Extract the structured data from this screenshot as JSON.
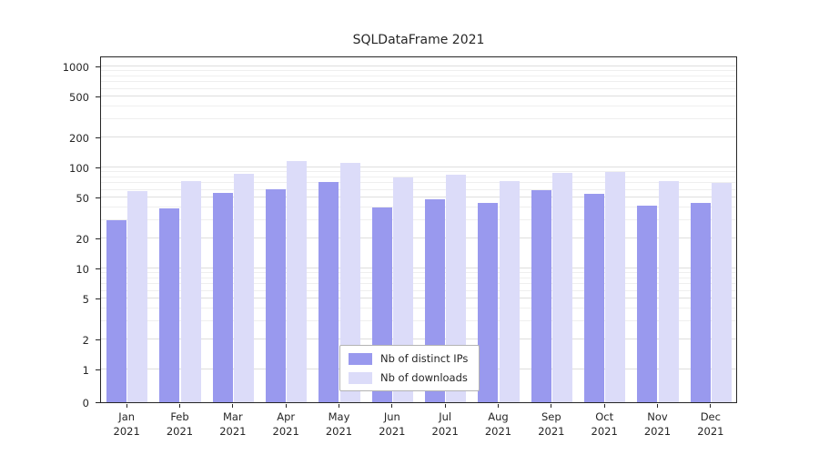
{
  "chart_data": {
    "type": "bar",
    "title": "SQLDataFrame 2021",
    "xlabel": "",
    "ylabel": "",
    "yscale": "symlog",
    "ylim": [
      0,
      1100
    ],
    "y_ticks": [
      0,
      1,
      2,
      5,
      10,
      20,
      50,
      100,
      200,
      500,
      1000
    ],
    "grid": true,
    "legend_position": "lower center",
    "categories": [
      "Jan 2021",
      "Feb 2021",
      "Mar 2021",
      "Apr 2021",
      "May 2021",
      "Jun 2021",
      "Jul 2021",
      "Aug 2021",
      "Sep 2021",
      "Oct 2021",
      "Nov 2021",
      "Dec 2021"
    ],
    "series": [
      {
        "name": "Nb of distinct IPs",
        "color": "#9999ee",
        "values": [
          30,
          39,
          56,
          61,
          72,
          40,
          48,
          45,
          59,
          55,
          42,
          45
        ]
      },
      {
        "name": "Nb of downloads",
        "color": "#dcdcf9",
        "values": [
          58,
          73,
          86,
          115,
          110,
          80,
          84,
          73,
          88,
          90,
          74,
          70
        ]
      }
    ]
  }
}
